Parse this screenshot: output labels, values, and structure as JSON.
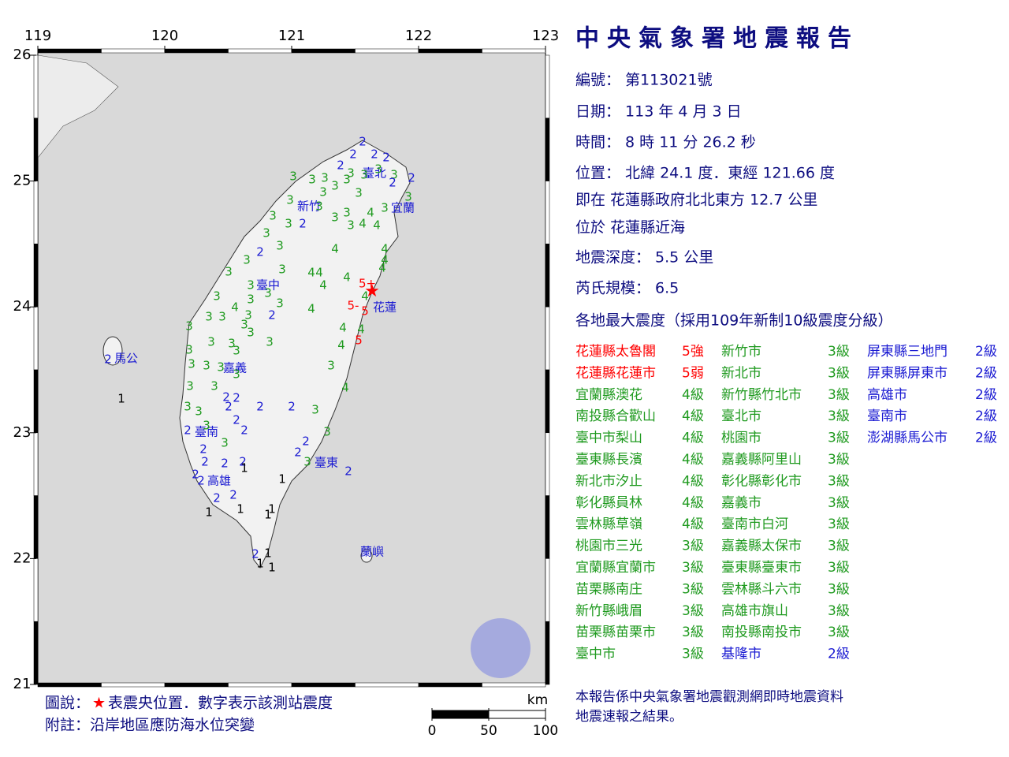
{
  "map": {
    "lon_ticks": [
      119,
      120,
      121,
      122,
      123
    ],
    "lat_ticks": [
      26,
      25,
      24,
      23,
      22,
      21
    ],
    "places": [
      "臺北",
      "宜蘭",
      "新竹",
      "臺中",
      "花蓮",
      "嘉義",
      "臺南",
      "高雄",
      "臺東",
      "馬公",
      "蘭嶼"
    ],
    "epicenter": "★",
    "stations": [
      "2",
      "2",
      "2",
      "2",
      "2",
      "3",
      "3",
      "3",
      "3",
      "2",
      "3",
      "3",
      "3",
      "3",
      "2",
      "3",
      "3",
      "3",
      "3",
      "3",
      "2",
      "3",
      "3",
      "3",
      "4",
      "3",
      "3",
      "3",
      "2",
      "3",
      "4",
      "4",
      "3",
      "3",
      "2",
      "4",
      "4",
      "3",
      "3",
      "3",
      "4",
      "4",
      "4",
      "4",
      "4",
      "3",
      "3",
      "4",
      "5+",
      "3",
      "4",
      "3",
      "3",
      "4",
      "4",
      "5-",
      "5",
      "3",
      "3",
      "3",
      "2",
      "3",
      "3",
      "3",
      "4",
      "4",
      "5",
      "4",
      "3",
      "3",
      "3",
      "3",
      "3",
      "3",
      "3",
      "3",
      "3",
      "3",
      "4",
      "2",
      "2",
      "3",
      "3",
      "2",
      "2",
      "2",
      "3",
      "3",
      "3",
      "2",
      "2",
      "3",
      "2",
      "3",
      "2",
      "3",
      "2",
      "2",
      "2",
      "2",
      "1",
      "3",
      "2",
      "2",
      "2",
      "1",
      "2",
      "2",
      "1",
      "1",
      "1",
      "1",
      "2",
      "1",
      "1",
      "1",
      "2",
      "1"
    ],
    "intensity_colors": {
      "1": "#000000",
      "2": "#1a1ad2",
      "3": "#1f9a1f",
      "4": "#1f9a1f",
      "5": "#ff0000"
    },
    "scale": {
      "unit": "km",
      "ticks": [
        0,
        50,
        100
      ]
    },
    "legend": [
      "圖說：",
      "★",
      "表震央位置．數字表示該測站震度"
    ],
    "note": "附註：沿岸地區應防海水位突變"
  },
  "report": {
    "title": "中央氣象署地震報告",
    "lines": [
      "編號： 第113021號",
      "日期： 113 年 4 月 3 日",
      "時間： 8 時 11 分 26.2 秒",
      "位置： 北緯 24.1 度．東經 121.66 度",
      "即在 花蓮縣政府北北東方 12.7 公里",
      "位於 花蓮縣近海",
      "地震深度： 5.5 公里",
      "芮氏規模： 6.5",
      "各地最大震度（採用109年新制10級震度分級）"
    ],
    "columns": [
      [
        [
          "花蓮縣太魯閣",
          "5強"
        ],
        [
          "花蓮縣花蓮市",
          "5弱"
        ],
        [
          "宜蘭縣澳花",
          "4級"
        ],
        [
          "南投縣合歡山",
          "4級"
        ],
        [
          "臺中市梨山",
          "4級"
        ],
        [
          "臺東縣長濱",
          "4級"
        ],
        [
          "新北市汐止",
          "4級"
        ],
        [
          "彰化縣員林",
          "4級"
        ],
        [
          "雲林縣草嶺",
          "4級"
        ],
        [
          "桃園市三光",
          "3級"
        ],
        [
          "宜蘭縣宜蘭市",
          "3級"
        ],
        [
          "苗栗縣南庄",
          "3級"
        ],
        [
          "新竹縣峨眉",
          "3級"
        ],
        [
          "苗栗縣苗栗市",
          "3級"
        ],
        [
          "臺中市",
          "3級"
        ]
      ],
      [
        [
          "新竹市",
          "3級"
        ],
        [
          "新北市",
          "3級"
        ],
        [
          "新竹縣竹北市",
          "3級"
        ],
        [
          "臺北市",
          "3級"
        ],
        [
          "桃園市",
          "3級"
        ],
        [
          "嘉義縣阿里山",
          "3級"
        ],
        [
          "彰化縣彰化市",
          "3級"
        ],
        [
          "嘉義市",
          "3級"
        ],
        [
          "臺南市白河",
          "3級"
        ],
        [
          "嘉義縣太保市",
          "3級"
        ],
        [
          "臺東縣臺東市",
          "3級"
        ],
        [
          "雲林縣斗六市",
          "3級"
        ],
        [
          "高雄市旗山",
          "3級"
        ],
        [
          "南投縣南投市",
          "3級"
        ],
        [
          "基隆市",
          "2級"
        ]
      ],
      [
        [
          "屏東縣三地門",
          "2級"
        ],
        [
          "屏東縣屏東市",
          "2級"
        ],
        [
          "高雄市",
          "2級"
        ],
        [
          "臺南市",
          "2級"
        ],
        [
          "澎湖縣馬公市",
          "2級"
        ]
      ]
    ],
    "footer": [
      "本報告係中央氣象署地震觀測網即時地震資料",
      "地震速報之結果。"
    ]
  }
}
